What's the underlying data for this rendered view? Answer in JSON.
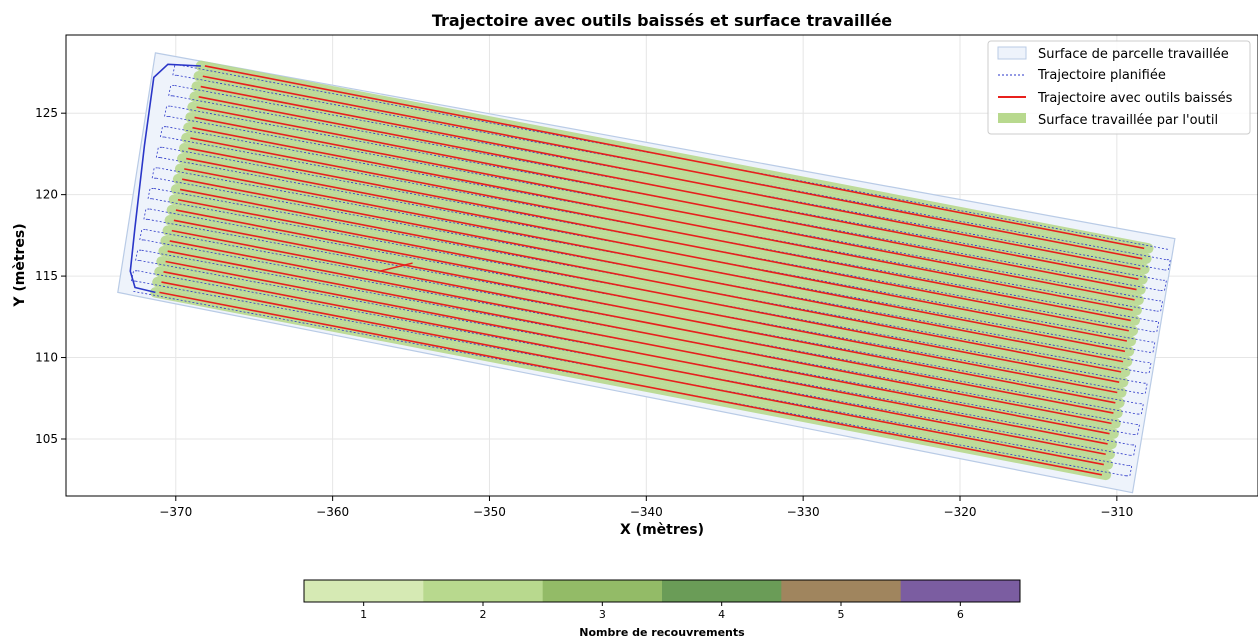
{
  "chart_data": {
    "type": "line",
    "title": "Trajectoire avec outils baissés et surface travaillée",
    "xlabel": "X (mètres)",
    "ylabel": "Y (mètres)",
    "xlim": [
      -377,
      -301
    ],
    "ylim": [
      101.5,
      129.8
    ],
    "x_ticks": [
      -370,
      -360,
      -350,
      -340,
      -330,
      -320,
      -310
    ],
    "y_ticks": [
      105,
      110,
      115,
      120,
      125
    ],
    "grid": true,
    "legend_position": "top-right",
    "legend": [
      {
        "key": "parcel",
        "label": "Surface de parcelle travaillée"
      },
      {
        "key": "planned",
        "label": "Trajectoire planifiée"
      },
      {
        "key": "tool",
        "label": "Trajectoire avec outils baissés"
      },
      {
        "key": "worked",
        "label": "Surface travaillée par l'outil"
      }
    ],
    "parcel_polygon": [
      [
        -371.3,
        128.7
      ],
      [
        -306.3,
        117.3
      ],
      [
        -309.0,
        101.7
      ],
      [
        -373.7,
        114.0
      ]
    ],
    "passes": {
      "count": 23,
      "first_start": [
        -371.3,
        114.0
      ],
      "first_end": [
        -310.7,
        102.8
      ],
      "last_start": [
        -368.4,
        127.9
      ],
      "last_end": [
        -308.0,
        116.7
      ]
    },
    "headland_path": [
      [
        -368.4,
        127.9
      ],
      [
        -370.5,
        128.0
      ],
      [
        -371.4,
        127.2
      ],
      [
        -372.0,
        123.0
      ],
      [
        -372.6,
        118.0
      ],
      [
        -372.9,
        115.3
      ],
      [
        -372.6,
        114.3
      ],
      [
        -371.3,
        114.0
      ]
    ],
    "stray_segment": [
      [
        -357.0,
        115.3
      ],
      [
        -354.9,
        115.8
      ]
    ],
    "colors": {
      "parcel_fill": "#eef3fb",
      "parcel_edge": "#b9cbe6",
      "planned": "#2a36c8",
      "tool": "#e8201c",
      "worked": "#b8d98e"
    },
    "colorbar": {
      "label": "Nombre de recouvrements",
      "ticks": [
        1,
        2,
        3,
        4,
        5,
        6
      ],
      "colors": [
        "#d6eab4",
        "#b8d98e",
        "#93bb67",
        "#6a9c57",
        "#a0855e",
        "#7b5da1"
      ]
    }
  }
}
